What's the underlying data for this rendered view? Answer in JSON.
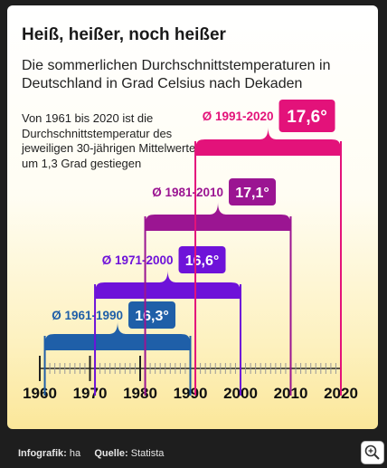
{
  "title": "Heiß, heißer, noch heißer",
  "subtitle": "Die sommerlichen Durchschnittstemperaturen in Deutschland in Grad Celsius nach Dekaden",
  "note": "Von 1961 bis 2020 ist die Durchschnittstemperatur des jeweiligen 30-jährigen Mittelwertes um 1,3 Grad gestiegen",
  "footer": {
    "infografik_label": "Infografik:",
    "infografik_value": "ha",
    "quelle_label": "Quelle:",
    "quelle_value": "Statista"
  },
  "zoom_icon": "zoom-in-icon",
  "chart_data": {
    "type": "bar",
    "x_ticks": [
      1960,
      1970,
      1980,
      1990,
      2000,
      2010,
      2020
    ],
    "xlim": [
      1960,
      2020
    ],
    "series": [
      {
        "period": "Ø 1961-1990",
        "start": 1961,
        "end": 1990,
        "value": 16.3,
        "value_label": "16,3°",
        "color": "#1f5fa8"
      },
      {
        "period": "Ø 1971-2000",
        "start": 1971,
        "end": 2000,
        "value": 16.6,
        "value_label": "16,6°",
        "color": "#6e12d9"
      },
      {
        "period": "Ø 1981-2010",
        "start": 1981,
        "end": 2010,
        "value": 17.1,
        "value_label": "17,1°",
        "color": "#9b1592"
      },
      {
        "period": "Ø 1991-2020",
        "start": 1991,
        "end": 2020,
        "value": 17.6,
        "value_label": "17,6°",
        "color": "#e3127a"
      }
    ]
  }
}
